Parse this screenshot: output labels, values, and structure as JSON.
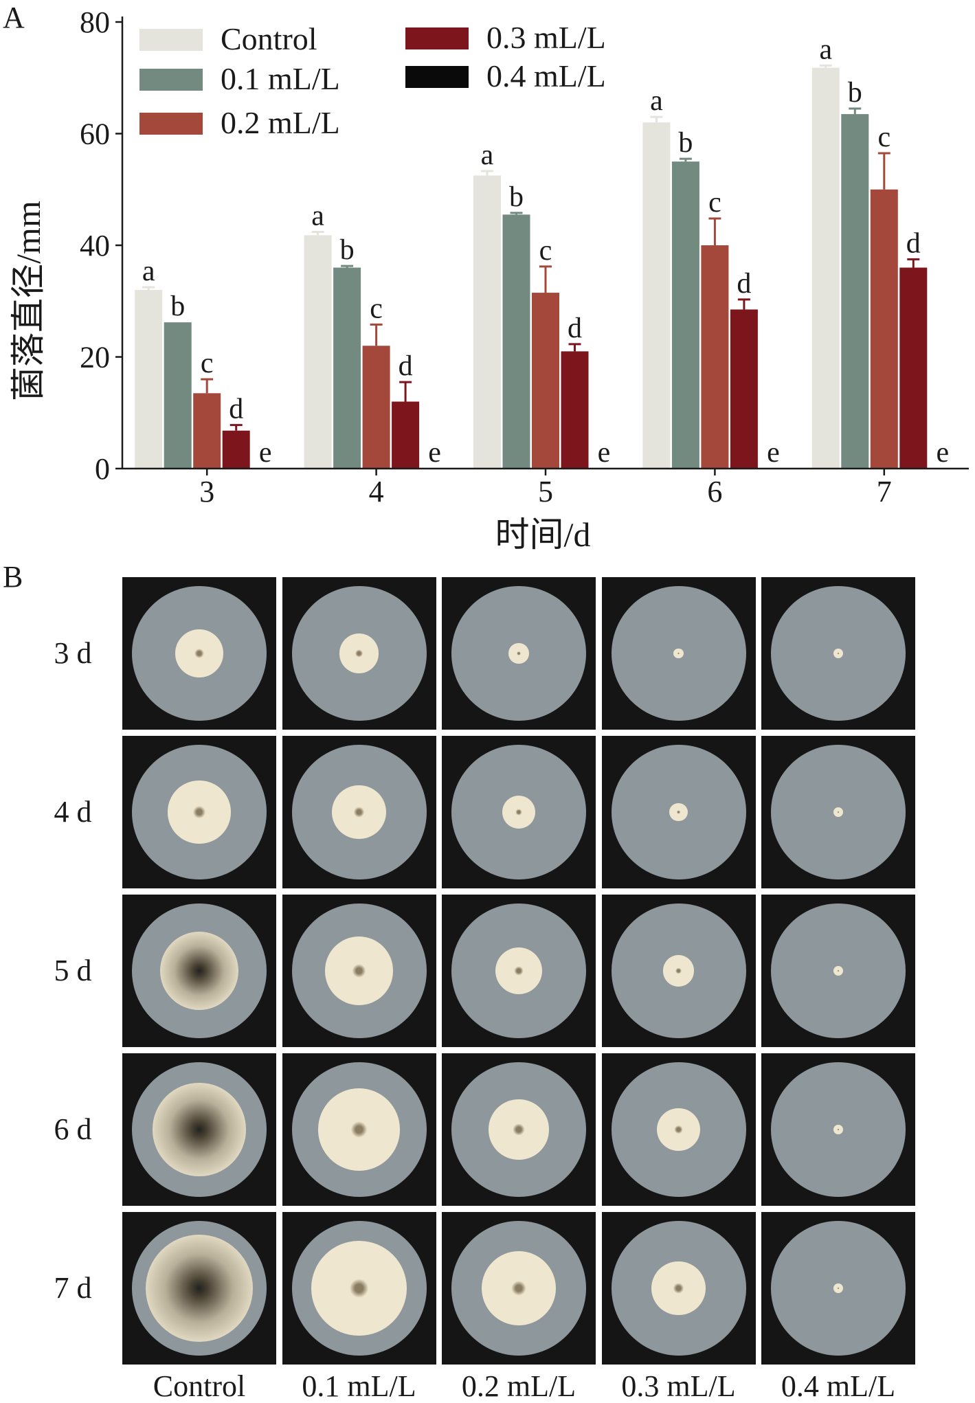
{
  "panel_a_label": "A",
  "panel_b_label": "B",
  "chart_data": {
    "type": "bar",
    "xlabel": "时间/d",
    "ylabel": "菌落直径/mm",
    "categories": [
      "3",
      "4",
      "5",
      "6",
      "7"
    ],
    "ylim": [
      0,
      80
    ],
    "yticks": [
      "0",
      "20",
      "40",
      "60",
      "80"
    ],
    "grid": false,
    "legend_position": "top-left",
    "series": [
      {
        "name": "Control",
        "color": "#e4e4dc",
        "values": [
          32,
          41.8,
          52.5,
          62,
          71.8
        ],
        "errors": [
          0.5,
          0.6,
          0.8,
          1.0,
          0.4
        ],
        "letters": [
          "a",
          "a",
          "a",
          "a",
          "a"
        ]
      },
      {
        "name": "0.1 mL/L",
        "color": "#738a80",
        "values": [
          26.2,
          36,
          45.5,
          55,
          63.5
        ],
        "errors": [
          0,
          0.3,
          0.3,
          0.5,
          1.0
        ],
        "letters": [
          "b",
          "b",
          "b",
          "b",
          "b"
        ]
      },
      {
        "name": "0.2 mL/L",
        "color": "#a3483a",
        "values": [
          13.5,
          22,
          31.5,
          40,
          50
        ],
        "errors": [
          2.5,
          3.8,
          4.7,
          4.8,
          6.5
        ],
        "letters": [
          "c",
          "c",
          "c",
          "c",
          "c"
        ]
      },
      {
        "name": "0.3 mL/L",
        "color": "#7d161c",
        "values": [
          6.8,
          12,
          21,
          28.5,
          36
        ],
        "errors": [
          1.0,
          3.5,
          1.3,
          1.8,
          1.5
        ],
        "letters": [
          "d",
          "d",
          "d",
          "d",
          "d"
        ]
      },
      {
        "name": "0.4 mL/L",
        "color": "#0a0a0a",
        "values": [
          0,
          0,
          0,
          0,
          0
        ],
        "errors": [
          0,
          0,
          0,
          0,
          0
        ],
        "letters": [
          "e",
          "e",
          "e",
          "e",
          "e"
        ]
      }
    ]
  },
  "photo_grid": {
    "row_labels": [
      "3 d",
      "4 d",
      "5 d",
      "6 d",
      "7 d"
    ],
    "col_labels": [
      "Control",
      "0.1 mL/L",
      "0.2 mL/L",
      "0.3 mL/L",
      "0.4 mL/L"
    ],
    "colony_diameter_mm": [
      [
        32,
        26.2,
        13.5,
        6.8,
        0
      ],
      [
        41.8,
        36,
        22,
        12,
        0
      ],
      [
        52.5,
        45.5,
        31.5,
        21,
        0
      ],
      [
        62,
        55,
        40,
        28.5,
        0
      ],
      [
        71.8,
        63.5,
        50,
        36,
        0
      ]
    ],
    "plate_colors": {
      "agar": "#8e979b",
      "rim": "#c9cbc6",
      "colony": "#efe6cf",
      "melanized": "#4a4233"
    }
  }
}
